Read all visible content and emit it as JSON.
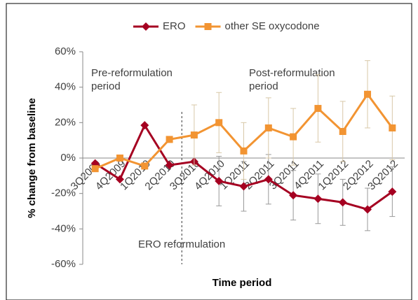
{
  "chart_data": {
    "type": "line",
    "x_label": "Time period",
    "y_label": "% change from baseline",
    "categories": [
      "3Q2009",
      "4Q2009",
      "1Q2010",
      "2Q2010",
      "3Q2010",
      "4Q2010",
      "1Q2011",
      "2Q2011",
      "3Q2011",
      "4Q2011",
      "1Q2012",
      "2Q2012",
      "3Q2012"
    ],
    "series": [
      {
        "name": "ERO",
        "color": "#a50021",
        "marker": "diamond",
        "values": [
          -3,
          -12,
          18.5,
          -4,
          -2,
          -13,
          -16,
          -12,
          -21,
          -23,
          -25,
          -29,
          -19
        ],
        "errors": [
          null,
          null,
          null,
          null,
          null,
          14,
          14,
          14,
          14,
          14,
          13,
          12,
          14
        ]
      },
      {
        "name": "other SE oxycodone",
        "color": "#f29432",
        "marker": "square",
        "values": [
          -6,
          0,
          -4.5,
          10.5,
          13,
          20,
          4,
          17,
          12,
          28,
          15,
          36,
          17
        ],
        "errors": [
          null,
          null,
          null,
          null,
          17,
          17,
          16,
          17,
          16,
          19,
          17,
          19,
          18
        ]
      }
    ],
    "ylim": [
      -60,
      60
    ],
    "yticks": [
      {
        "value": -60,
        "label": "-60%"
      },
      {
        "value": -40,
        "label": "-40%"
      },
      {
        "value": -20,
        "label": "-20%"
      },
      {
        "value": 0,
        "label": "0%"
      },
      {
        "value": 20,
        "label": "20%"
      },
      {
        "value": 40,
        "label": "40%"
      },
      {
        "value": 60,
        "label": "60%"
      }
    ],
    "annotations": [
      {
        "lines": [
          "Pre-reformulation",
          "period"
        ]
      },
      {
        "lines": [
          "Post-reformulation",
          "period"
        ]
      },
      {
        "lines": [
          "ERO reformulation"
        ]
      }
    ],
    "legend": "top"
  }
}
